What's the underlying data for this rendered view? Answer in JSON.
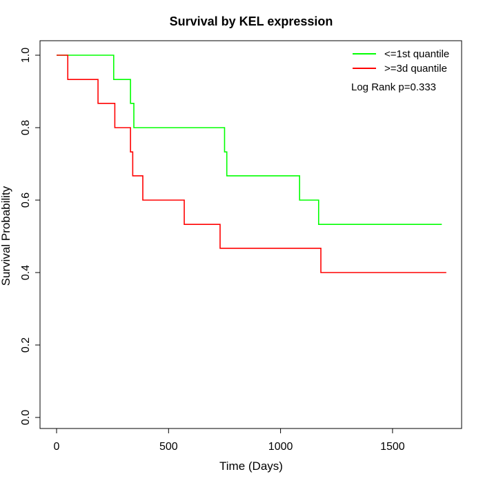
{
  "chart_data": {
    "type": "line",
    "title": "Survival by KEL expression",
    "xlabel": "Time (Days)",
    "ylabel": "Survival Probability",
    "xlim": [
      0,
      1800
    ],
    "ylim": [
      0,
      1
    ],
    "xticks": [
      0,
      500,
      1000,
      1500
    ],
    "yticks": [
      0.0,
      0.2,
      0.4,
      0.6,
      0.8,
      1.0
    ],
    "xtick_labels": [
      "0",
      "500",
      "1000",
      "1500"
    ],
    "ytick_labels": [
      "0.0",
      "0.2",
      "0.4",
      "0.6",
      "0.8",
      "1.0"
    ],
    "grid": false,
    "legend_position": "top-right",
    "annotation": "Log Rank p=0.333",
    "series": [
      {
        "name": "<=1st quantile",
        "color": "#00ff00",
        "x": [
          0,
          255,
          255,
          330,
          330,
          345,
          345,
          750,
          750,
          760,
          760,
          1085,
          1085,
          1170,
          1170,
          1720
        ],
        "y": [
          1.0,
          1.0,
          0.933,
          0.933,
          0.867,
          0.867,
          0.8,
          0.8,
          0.733,
          0.733,
          0.667,
          0.667,
          0.6,
          0.6,
          0.533,
          0.533
        ]
      },
      {
        "name": ">=3d quantile",
        "color": "#ff0000",
        "x": [
          0,
          50,
          50,
          185,
          185,
          260,
          260,
          330,
          330,
          340,
          340,
          385,
          385,
          570,
          570,
          730,
          730,
          1180,
          1180,
          1740
        ],
        "y": [
          1.0,
          1.0,
          0.933,
          0.933,
          0.867,
          0.867,
          0.8,
          0.8,
          0.733,
          0.733,
          0.667,
          0.667,
          0.6,
          0.6,
          0.533,
          0.533,
          0.467,
          0.467,
          0.4,
          0.4
        ]
      }
    ]
  }
}
